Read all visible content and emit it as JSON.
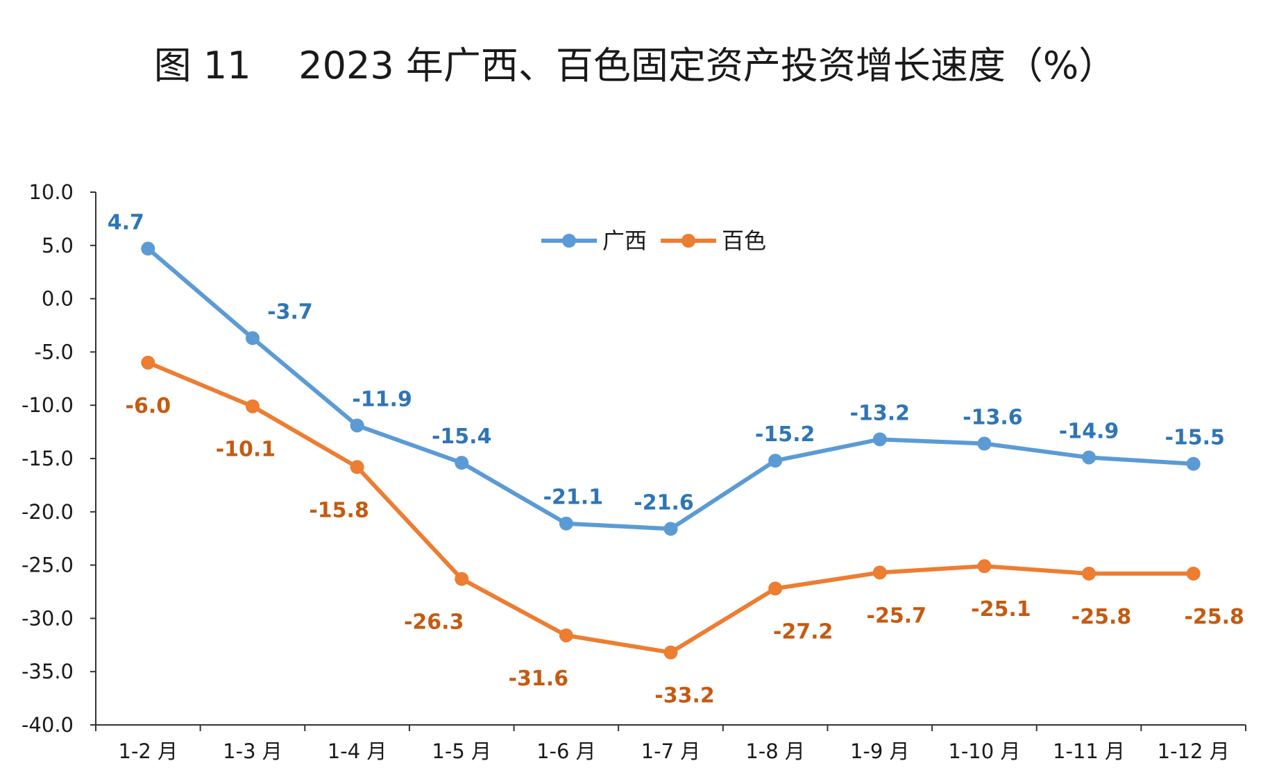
{
  "chart_data": {
    "type": "line",
    "title": "图 11    2023 年广西、百色固定资产投资增长速度（%）",
    "xlabel": "",
    "ylabel": "",
    "categories": [
      "1-2 月",
      "1-3 月",
      "1-4 月",
      "1-5 月",
      "1-6 月",
      "1-7 月",
      "1-8 月",
      "1-9 月",
      "1-10 月",
      "1-11 月",
      "1-12 月"
    ],
    "ylim": [
      -40,
      10
    ],
    "ytick_step": 5,
    "grid": false,
    "legend_position": "top-center",
    "series": [
      {
        "name": "广西",
        "color": "#5B9BD5",
        "values": [
          4.7,
          -3.7,
          -11.9,
          -15.4,
          -21.1,
          -21.6,
          -15.2,
          -13.2,
          -13.6,
          -14.9,
          -15.5
        ]
      },
      {
        "name": "百色",
        "color": "#ED7D31",
        "values": [
          -6.0,
          -10.1,
          -15.8,
          -26.3,
          -31.6,
          -33.2,
          -27.2,
          -25.7,
          -25.1,
          -25.8,
          -25.8
        ]
      }
    ]
  }
}
